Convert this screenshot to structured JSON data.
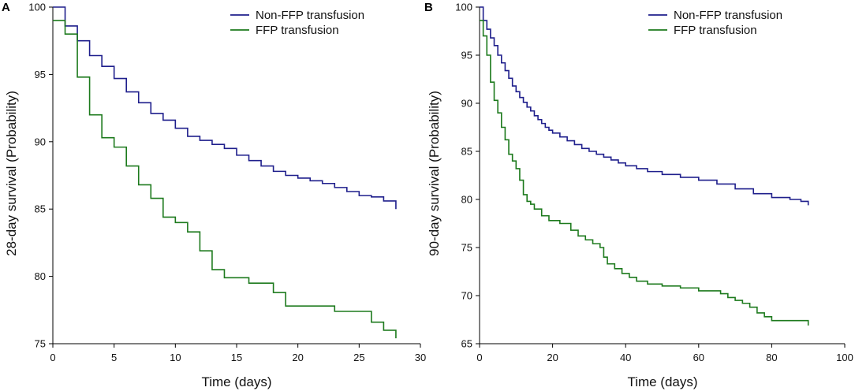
{
  "colors": {
    "non_ffp": "#1f1f8c",
    "ffp": "#1d7a1d",
    "axis": "#000000"
  },
  "chart_data": [
    {
      "panel": "A",
      "type": "line",
      "step": true,
      "title": "",
      "xlabel": "Time (days)",
      "ylabel": "28-day survival (Probability)",
      "xlim": [
        0,
        30
      ],
      "ylim": [
        75,
        100
      ],
      "xticks": [
        0,
        5,
        10,
        15,
        20,
        25,
        30
      ],
      "yticks": [
        75,
        80,
        85,
        90,
        95,
        100
      ],
      "legend_position": "top-right",
      "series": [
        {
          "key": "non_ffp",
          "name": "Non-FFP transfusion",
          "x": [
            0,
            1,
            2,
            3,
            4,
            5,
            6,
            7,
            8,
            9,
            10,
            11,
            12,
            13,
            14,
            15,
            16,
            17,
            18,
            19,
            20,
            21,
            22,
            23,
            24,
            25,
            26,
            27,
            28
          ],
          "y": [
            100,
            98.6,
            97.5,
            96.4,
            95.6,
            94.7,
            93.7,
            92.9,
            92.1,
            91.6,
            91.0,
            90.4,
            90.1,
            89.8,
            89.5,
            89.0,
            88.6,
            88.2,
            87.8,
            87.5,
            87.3,
            87.1,
            86.9,
            86.6,
            86.3,
            86.0,
            85.9,
            85.6,
            85.0
          ]
        },
        {
          "key": "ffp",
          "name": "FFP transfusion",
          "x": [
            0,
            1,
            2,
            3,
            4,
            5,
            6,
            7,
            8,
            9,
            10,
            11,
            12,
            13,
            14,
            16,
            18,
            19,
            23,
            26,
            27,
            28
          ],
          "y": [
            99.0,
            98.0,
            94.8,
            92.0,
            90.3,
            89.6,
            88.2,
            86.8,
            85.8,
            84.4,
            84.0,
            83.3,
            81.9,
            80.5,
            79.9,
            79.5,
            78.8,
            77.8,
            77.4,
            76.6,
            76.0,
            75.4
          ]
        }
      ]
    },
    {
      "panel": "B",
      "type": "line",
      "step": true,
      "title": "",
      "xlabel": "Time (days)",
      "ylabel": "90-day survival (Probability)",
      "xlim": [
        0,
        100
      ],
      "ylim": [
        65,
        100
      ],
      "xticks": [
        0,
        20,
        40,
        60,
        80,
        100
      ],
      "yticks": [
        65,
        70,
        75,
        80,
        85,
        90,
        95,
        100
      ],
      "legend_position": "top-right",
      "series": [
        {
          "key": "non_ffp",
          "name": "Non-FFP transfusion",
          "x": [
            0,
            1,
            2,
            3,
            4,
            5,
            6,
            7,
            8,
            9,
            10,
            11,
            12,
            13,
            14,
            15,
            16,
            17,
            18,
            19,
            20,
            22,
            24,
            26,
            28,
            30,
            32,
            34,
            36,
            38,
            40,
            43,
            46,
            50,
            55,
            60,
            65,
            70,
            75,
            80,
            85,
            88,
            90
          ],
          "y": [
            100,
            98.6,
            97.7,
            96.8,
            96.0,
            95.0,
            94.2,
            93.4,
            92.6,
            91.8,
            91.2,
            90.6,
            90.1,
            89.6,
            89.2,
            88.7,
            88.3,
            87.9,
            87.5,
            87.2,
            86.9,
            86.5,
            86.1,
            85.7,
            85.3,
            85.0,
            84.7,
            84.4,
            84.1,
            83.8,
            83.5,
            83.2,
            82.9,
            82.6,
            82.3,
            82.0,
            81.6,
            81.1,
            80.6,
            80.2,
            80.0,
            79.8,
            79.4
          ]
        },
        {
          "key": "ffp",
          "name": "FFP transfusion",
          "x": [
            0,
            1,
            2,
            3,
            4,
            5,
            6,
            7,
            8,
            9,
            10,
            11,
            12,
            13,
            14,
            15,
            17,
            19,
            22,
            25,
            27,
            29,
            31,
            33,
            34,
            35,
            37,
            39,
            41,
            43,
            46,
            50,
            55,
            60,
            66,
            68,
            70,
            72,
            74,
            76,
            78,
            80,
            90
          ],
          "y": [
            98.6,
            97.0,
            95.0,
            92.2,
            90.3,
            89.0,
            87.5,
            86.2,
            84.7,
            84.0,
            83.2,
            82.0,
            80.5,
            79.8,
            79.5,
            79.0,
            78.3,
            77.8,
            77.5,
            76.8,
            76.2,
            75.8,
            75.4,
            75.0,
            74.0,
            73.3,
            72.8,
            72.3,
            71.9,
            71.5,
            71.2,
            71.0,
            70.8,
            70.5,
            70.2,
            69.8,
            69.5,
            69.2,
            68.8,
            68.2,
            67.8,
            67.4,
            66.9
          ]
        }
      ]
    }
  ]
}
